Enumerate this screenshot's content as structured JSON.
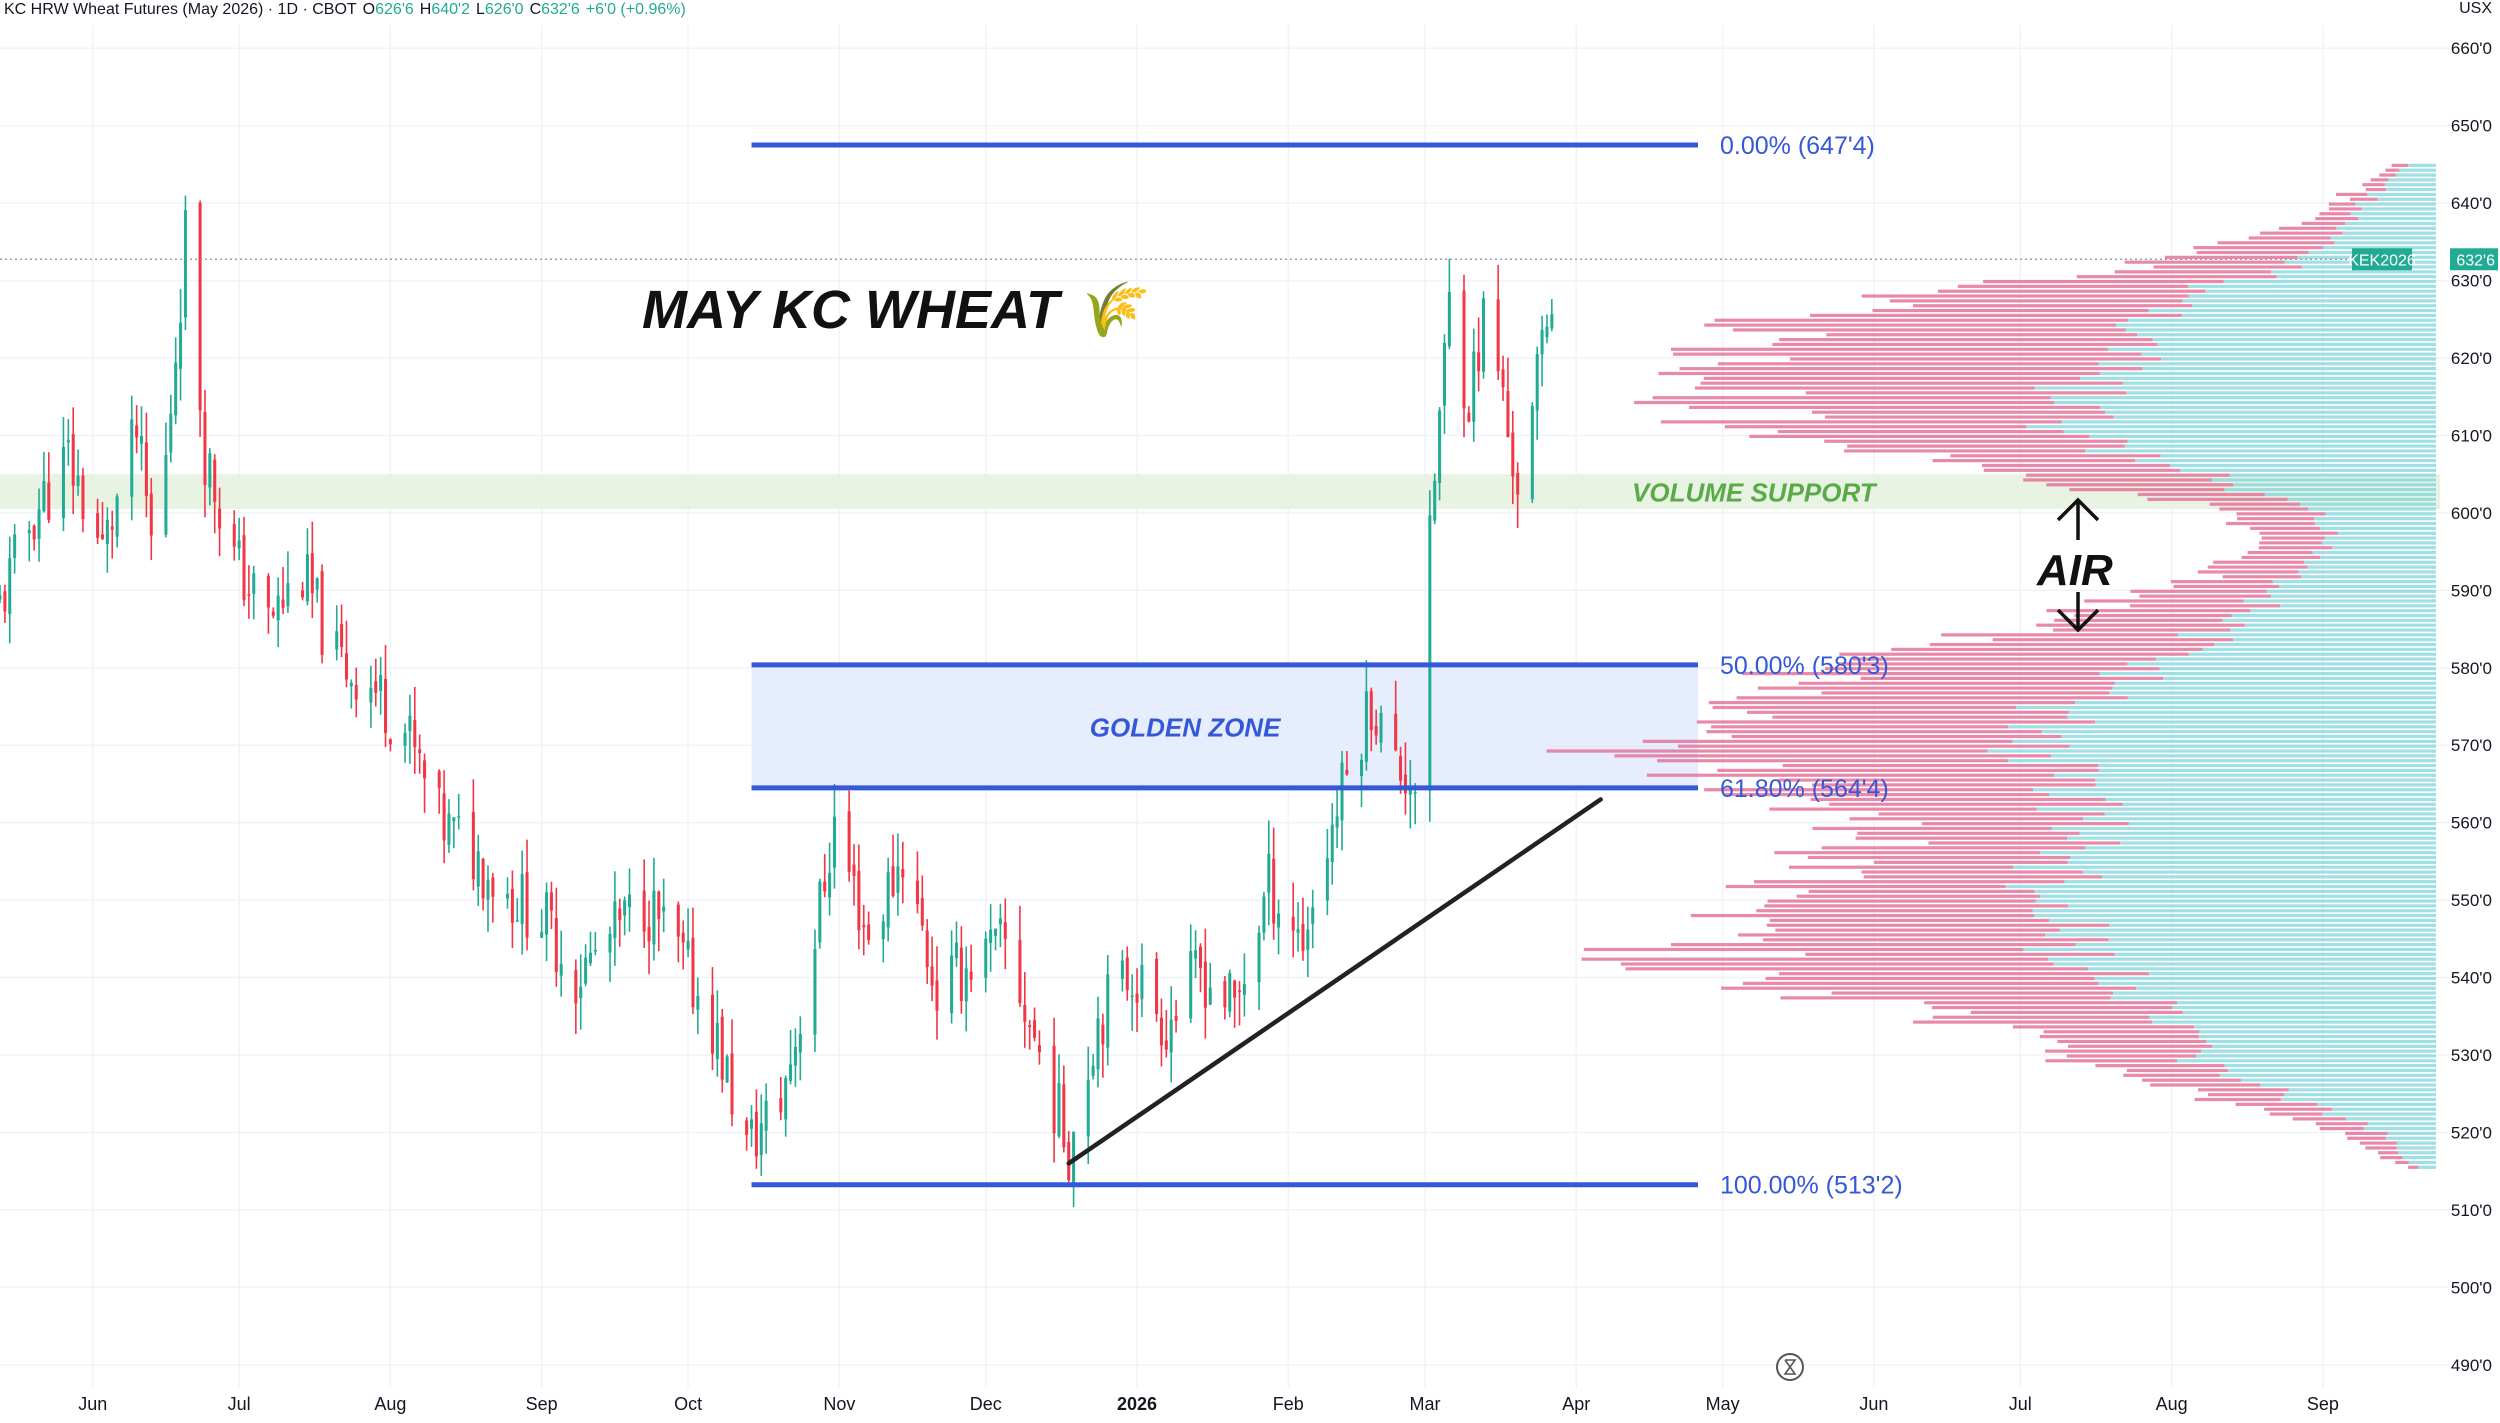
{
  "header": {
    "title": "KC HRW Wheat Futures (May 2026) · 1D · CBOT",
    "open_label": "O",
    "open": "626'6",
    "high_label": "H",
    "high": "640'2",
    "low_label": "L",
    "low": "626'0",
    "close_label": "C",
    "close": "632'6",
    "change": "+6'0 (+0.96%)",
    "currency": "USX"
  },
  "colors": {
    "up": "#22ab94",
    "down": "#f23645",
    "fib": "#3558d8",
    "golden_zone": "#e6edfd",
    "volume_support_zone": "#e8f3e4",
    "volume_support_text": "#5aaa48",
    "vp_blue": "#7fd4dc",
    "vp_pink": "#e36b93",
    "trendline": "#222222"
  },
  "chart_data": {
    "type": "candlestick",
    "symbol": "KEK2026",
    "last_price": 632.75,
    "last_price_label": "632'6",
    "ylim": [
      487,
      663
    ],
    "y_ticks": [
      490,
      500,
      510,
      520,
      530,
      540,
      550,
      560,
      570,
      580,
      590,
      600,
      610,
      620,
      630,
      640,
      650,
      660
    ],
    "y_tick_labels": [
      "490'0",
      "500'0",
      "510'0",
      "520'0",
      "530'0",
      "540'0",
      "550'0",
      "560'0",
      "570'0",
      "580'0",
      "590'0",
      "600'0",
      "610'0",
      "620'0",
      "630'0",
      "640'0",
      "650'0",
      "660'0"
    ],
    "date_range": [
      "2025-05-13",
      "2026-09-25"
    ],
    "x_ticks": [
      {
        "date": "2025-06-01",
        "label": "Jun"
      },
      {
        "date": "2025-07-01",
        "label": "Jul"
      },
      {
        "date": "2025-08-01",
        "label": "Aug"
      },
      {
        "date": "2025-09-01",
        "label": "Sep"
      },
      {
        "date": "2025-10-01",
        "label": "Oct"
      },
      {
        "date": "2025-11-01",
        "label": "Nov"
      },
      {
        "date": "2025-12-01",
        "label": "Dec"
      },
      {
        "date": "2026-01-01",
        "label": "2026"
      },
      {
        "date": "2026-02-01",
        "label": "Feb"
      },
      {
        "date": "2026-03-01",
        "label": "Mar"
      },
      {
        "date": "2026-04-01",
        "label": "Apr"
      },
      {
        "date": "2026-05-01",
        "label": "May"
      },
      {
        "date": "2026-06-01",
        "label": "Jun"
      },
      {
        "date": "2026-07-01",
        "label": "Jul"
      },
      {
        "date": "2026-08-01",
        "label": "Aug"
      },
      {
        "date": "2026-09-01",
        "label": "Sep"
      }
    ],
    "price_path": [
      [
        "2025-05-13",
        588
      ],
      [
        "2025-05-20",
        600
      ],
      [
        "2025-05-27",
        607
      ],
      [
        "2025-06-03",
        595
      ],
      [
        "2025-06-10",
        610
      ],
      [
        "2025-06-14",
        592
      ],
      [
        "2025-06-20",
        636
      ],
      [
        "2025-06-24",
        608
      ],
      [
        "2025-06-30",
        594
      ],
      [
        "2025-07-07",
        586
      ],
      [
        "2025-07-14",
        592
      ],
      [
        "2025-07-21",
        581
      ],
      [
        "2025-07-28",
        578
      ],
      [
        "2025-08-04",
        572
      ],
      [
        "2025-08-11",
        560
      ],
      [
        "2025-08-18",
        556
      ],
      [
        "2025-08-25",
        551
      ],
      [
        "2025-09-01",
        548
      ],
      [
        "2025-09-08",
        540
      ],
      [
        "2025-09-15",
        545
      ],
      [
        "2025-09-22",
        550
      ],
      [
        "2025-09-29",
        543
      ],
      [
        "2025-10-06",
        534
      ],
      [
        "2025-10-13",
        518
      ],
      [
        "2025-10-20",
        524
      ],
      [
        "2025-10-25",
        538
      ],
      [
        "2025-10-31",
        560
      ],
      [
        "2025-11-07",
        545
      ],
      [
        "2025-11-14",
        556
      ],
      [
        "2025-11-21",
        538
      ],
      [
        "2025-11-28",
        542
      ],
      [
        "2025-12-05",
        544
      ],
      [
        "2025-12-12",
        530
      ],
      [
        "2025-12-18",
        518
      ],
      [
        "2025-12-24",
        535
      ],
      [
        "2025-12-31",
        541
      ],
      [
        "2026-01-07",
        534
      ],
      [
        "2026-01-14",
        541
      ],
      [
        "2026-01-21",
        536
      ],
      [
        "2026-01-28",
        552
      ],
      [
        "2026-02-04",
        545
      ],
      [
        "2026-02-11",
        562
      ],
      [
        "2026-02-18",
        576
      ],
      [
        "2026-02-23",
        567
      ],
      [
        "2026-02-27",
        566
      ],
      [
        "2026-03-03",
        605
      ],
      [
        "2026-03-06",
        627
      ],
      [
        "2026-03-10",
        615
      ],
      [
        "2026-03-14",
        628
      ],
      [
        "2026-03-18",
        610
      ],
      [
        "2026-03-21",
        601
      ],
      [
        "2026-03-25",
        622
      ],
      [
        "2026-03-28",
        632.75
      ]
    ],
    "fib_levels": [
      {
        "label": "0.00% (647'4)",
        "value": 647.5
      },
      {
        "label": "50.00% (580'3)",
        "value": 580.375
      },
      {
        "label": "61.80% (564'4)",
        "value": 564.5
      },
      {
        "label": "100.00% (513'2)",
        "value": 513.25
      }
    ],
    "fib_x_range": [
      "2025-10-14",
      "2026-04-28"
    ],
    "golden_zone": {
      "label": "GOLDEN ZONE",
      "from": 564.5,
      "to": 580.375
    },
    "volume_support": {
      "label": "VOLUME SUPPORT",
      "from": 600.5,
      "to": 605
    },
    "trendline": {
      "from": [
        "2025-12-18",
        516
      ],
      "to": [
        "2026-04-06",
        563
      ]
    },
    "volume_profile_nodes": [
      {
        "price": 645,
        "blue": 0.04,
        "pink": 0.02
      },
      {
        "price": 638,
        "blue": 0.12,
        "pink": 0.05
      },
      {
        "price": 632,
        "blue": 0.2,
        "pink": 0.22
      },
      {
        "price": 628,
        "blue": 0.35,
        "pink": 0.4
      },
      {
        "price": 622,
        "blue": 0.42,
        "pink": 0.56
      },
      {
        "price": 616,
        "blue": 0.5,
        "pink": 0.52
      },
      {
        "price": 610,
        "blue": 0.52,
        "pink": 0.48
      },
      {
        "price": 605,
        "blue": 0.34,
        "pink": 0.26
      },
      {
        "price": 600,
        "blue": 0.18,
        "pink": 0.12
      },
      {
        "price": 596,
        "blue": 0.14,
        "pink": 0.08
      },
      {
        "price": 591,
        "blue": 0.2,
        "pink": 0.14
      },
      {
        "price": 585,
        "blue": 0.3,
        "pink": 0.3
      },
      {
        "price": 580,
        "blue": 0.4,
        "pink": 0.48
      },
      {
        "price": 575,
        "blue": 0.52,
        "pink": 0.5
      },
      {
        "price": 569,
        "blue": 0.56,
        "pink": 0.52
      },
      {
        "price": 565,
        "blue": 0.5,
        "pink": 0.46
      },
      {
        "price": 560,
        "blue": 0.48,
        "pink": 0.3
      },
      {
        "price": 555,
        "blue": 0.52,
        "pink": 0.32
      },
      {
        "price": 550,
        "blue": 0.56,
        "pink": 0.4
      },
      {
        "price": 545,
        "blue": 0.52,
        "pink": 0.52
      },
      {
        "price": 540,
        "blue": 0.46,
        "pink": 0.56
      },
      {
        "price": 535,
        "blue": 0.4,
        "pink": 0.3
      },
      {
        "price": 530,
        "blue": 0.34,
        "pink": 0.18
      },
      {
        "price": 525,
        "blue": 0.22,
        "pink": 0.12
      },
      {
        "price": 520,
        "blue": 0.08,
        "pink": 0.06
      },
      {
        "price": 515,
        "blue": 0.02,
        "pink": 0.01
      }
    ],
    "annotations": [
      {
        "name": "chart-title",
        "text": "MAY KC WHEAT 🌾"
      },
      {
        "name": "air-label",
        "text": "AIR"
      }
    ]
  }
}
